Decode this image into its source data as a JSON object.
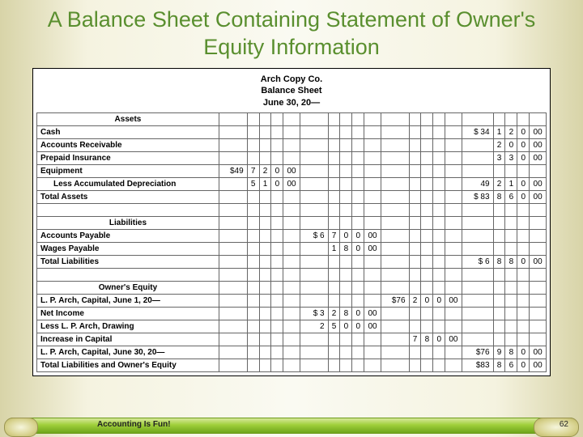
{
  "title": "A Balance Sheet Containing Statement of Owner's Equity Information",
  "company": {
    "name": "Arch Copy Co.",
    "report": "Balance Sheet",
    "date": "June 30, 20—"
  },
  "sections": {
    "assets": "Assets",
    "liab": "Liabilities",
    "equity": "Owner's Equity"
  },
  "rows": {
    "cash": {
      "label": "Cash",
      "g4": [
        "$ 34",
        "1",
        "2",
        "0",
        "00"
      ]
    },
    "ar": {
      "label": "Accounts Receivable",
      "g4": [
        "2",
        "0",
        "0",
        "00"
      ]
    },
    "prepaid": {
      "label": "Prepaid Insurance",
      "g4": [
        "3",
        "3",
        "0",
        "00"
      ]
    },
    "equip": {
      "label": "Equipment",
      "g1": [
        "$49",
        "7",
        "2",
        "0",
        "00"
      ]
    },
    "accdep": {
      "label": "Less Accumulated Depreciation",
      "g1": [
        "5",
        "1",
        "0",
        "00"
      ],
      "g4": [
        "49",
        "2",
        "1",
        "0",
        "00"
      ]
    },
    "totassets": {
      "label": "Total Assets",
      "g4": [
        "$ 83",
        "8",
        "6",
        "0",
        "00"
      ]
    },
    "ap": {
      "label": "Accounts Payable",
      "g2": [
        "$ 6",
        "7",
        "0",
        "0",
        "00"
      ]
    },
    "wages": {
      "label": "Wages Payable",
      "g2": [
        "1",
        "8",
        "0",
        "00"
      ]
    },
    "totliab": {
      "label": "Total Liabilities",
      "g4": [
        "$ 6",
        "8",
        "8",
        "0",
        "00"
      ]
    },
    "cap1": {
      "label": "L. P. Arch, Capital, June 1, 20—",
      "g3": [
        "$76",
        "2",
        "0",
        "0",
        "00"
      ]
    },
    "netinc": {
      "label": "Net Income",
      "g2": [
        "$ 3",
        "2",
        "8",
        "0",
        "00"
      ]
    },
    "draw": {
      "label": "Less L. P. Arch, Drawing",
      "g2": [
        "2",
        "5",
        "0",
        "0",
        "00"
      ]
    },
    "incr": {
      "label": "Increase in Capital",
      "g3": [
        "7",
        "8",
        "0",
        "00"
      ]
    },
    "cap2": {
      "label": "L. P. Arch, Capital, June 30, 20—",
      "g4": [
        "$76",
        "9",
        "8",
        "0",
        "00"
      ]
    },
    "totle": {
      "label": "Total Liabilities and Owner's Equity",
      "g4": [
        "$83",
        "8",
        "6",
        "0",
        "00"
      ]
    }
  },
  "footer": {
    "label": "Accounting Is Fun!",
    "page": "62"
  },
  "colors": {
    "title": "#5a8f2f",
    "bar_top": "#d7e89a",
    "bar_mid": "#9fcf3a",
    "bar_bot": "#6ea51a"
  }
}
